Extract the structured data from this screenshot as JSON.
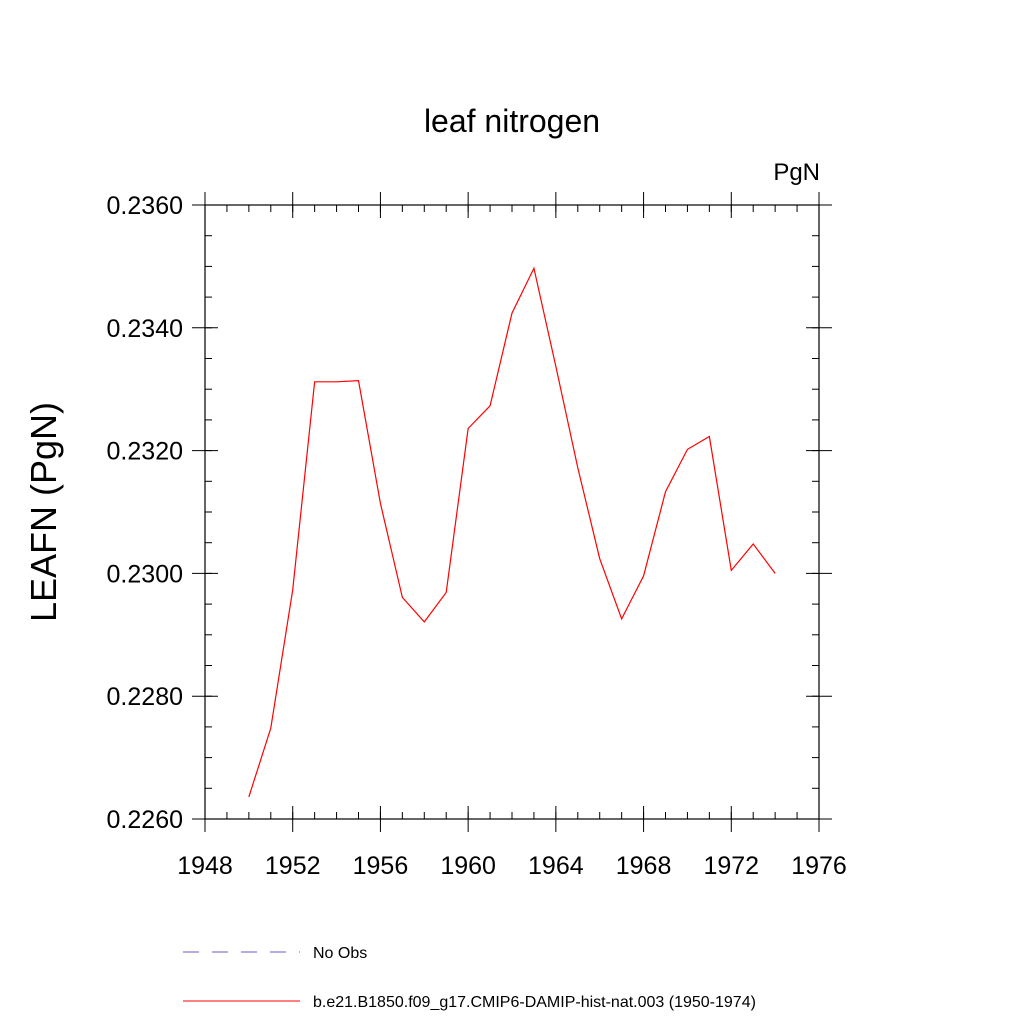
{
  "chart_data": {
    "type": "line",
    "title": "leaf nitrogen",
    "units": "PgN",
    "xlabel": "",
    "ylabel": "LEAFN  (PgN)",
    "xlim": [
      1948,
      1976
    ],
    "ylim": [
      0.226,
      0.236
    ],
    "x_ticks": [
      1948,
      1952,
      1956,
      1960,
      1964,
      1968,
      1972,
      1976
    ],
    "x_tick_labels": [
      "1948",
      "1952",
      "1956",
      "1960",
      "1964",
      "1968",
      "1972",
      "1976"
    ],
    "y_ticks": [
      0.226,
      0.228,
      0.23,
      0.232,
      0.234,
      0.236
    ],
    "y_tick_labels": [
      "0.2260",
      "0.2280",
      "0.2300",
      "0.2320",
      "0.2340",
      "0.2360"
    ],
    "x_minor_step": 1,
    "y_minor_step": 0.0005,
    "grid": false,
    "legend_position": "bottom",
    "series": [
      {
        "name": "b.e21.B1850.f09_g17.CMIP6-DAMIP-hist-nat.003 (1950-1974)",
        "color": "#ff0000",
        "style": "solid",
        "x": [
          1950,
          1951,
          1952,
          1953,
          1954,
          1955,
          1956,
          1957,
          1958,
          1959,
          1960,
          1961,
          1962,
          1963,
          1964,
          1965,
          1966,
          1967,
          1968,
          1969,
          1970,
          1971,
          1972,
          1973,
          1974
        ],
        "y": [
          0.22636,
          0.22748,
          0.22973,
          0.23312,
          0.23312,
          0.23314,
          0.23114,
          0.22961,
          0.22921,
          0.22969,
          0.23236,
          0.23273,
          0.23424,
          0.23497,
          0.23337,
          0.23172,
          0.23024,
          0.22926,
          0.22996,
          0.23133,
          0.23202,
          0.23223,
          0.23005,
          0.23048,
          0.23
        ]
      }
    ],
    "legend": [
      {
        "label": "No Obs",
        "color": "#6a5acd",
        "style": "dashed"
      },
      {
        "label": "b.e21.B1850.f09_g17.CMIP6-DAMIP-hist-nat.003 (1950-1974)",
        "color": "#ff0000",
        "style": "solid"
      }
    ]
  }
}
